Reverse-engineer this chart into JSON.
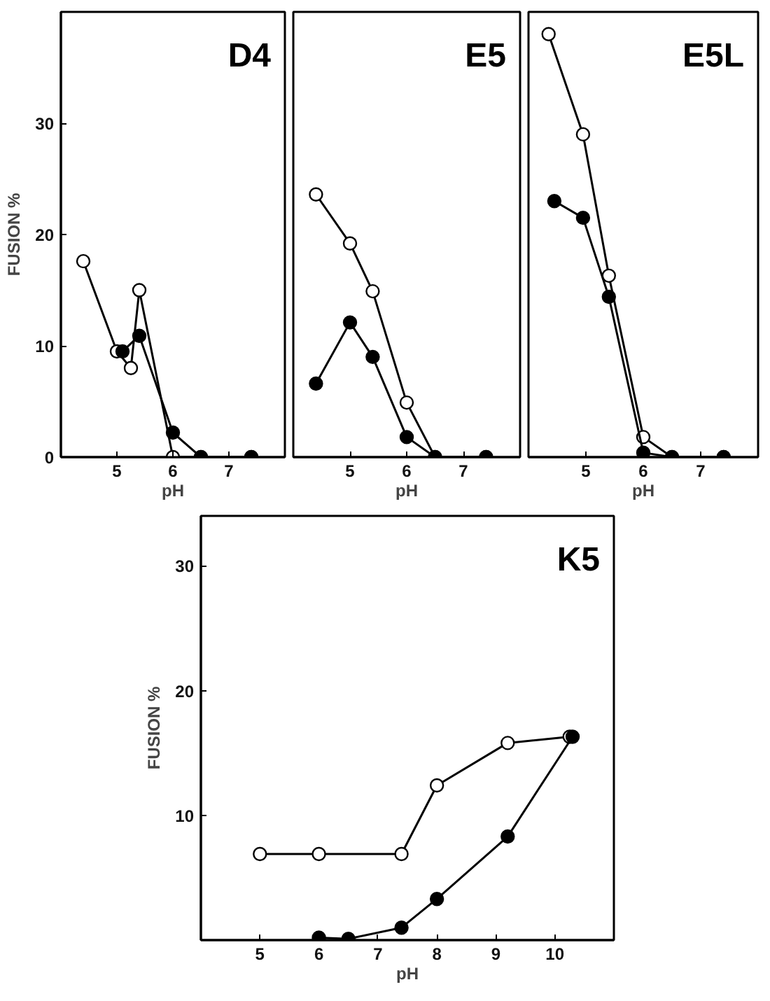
{
  "chart_data": [
    {
      "type": "line",
      "title": "D4",
      "xlabel": "pH",
      "ylabel": "FUSION %",
      "xlim": [
        4,
        8
      ],
      "ylim": [
        0,
        40
      ],
      "xticks": [
        5,
        6,
        7
      ],
      "yticks": [
        0,
        10,
        20,
        30
      ],
      "grid": false,
      "marker": "circle",
      "series": [
        {
          "color": "#ffffff",
          "x": [
            4.4,
            5.0,
            5.25,
            5.4,
            6.0,
            6.5,
            7.4
          ],
          "values": [
            17.6,
            9.5,
            8,
            15,
            0,
            0,
            0
          ]
        },
        {
          "color": "#000000",
          "x": [
            5.1,
            5.4,
            6.0,
            6.5,
            7.4
          ],
          "values": [
            9.5,
            10.9,
            2.2,
            0,
            0
          ]
        }
      ]
    },
    {
      "type": "line",
      "title": "E5",
      "xlabel": "pH",
      "xlim": [
        4,
        8
      ],
      "ylim": [
        0,
        40
      ],
      "xticks": [
        5,
        6,
        7
      ],
      "yticks": [
        0,
        10,
        20,
        30
      ],
      "tick_labels": "x",
      "grid": false,
      "marker": "circle",
      "series": [
        {
          "color": "#ffffff",
          "x": [
            4.4,
            5.0,
            5.4,
            6.0,
            6.5,
            7.4
          ],
          "values": [
            23.6,
            19.2,
            14.9,
            4.9,
            0,
            0
          ]
        },
        {
          "color": "#000000",
          "x": [
            4.4,
            5.0,
            5.4,
            6.0,
            6.5,
            7.4
          ],
          "values": [
            6.6,
            12.1,
            9.0,
            1.8,
            0,
            0
          ]
        }
      ]
    },
    {
      "type": "line",
      "title": "E5L",
      "xlabel": "pH",
      "xlim": [
        4,
        8
      ],
      "ylim": [
        0,
        40
      ],
      "xticks": [
        5,
        6,
        7
      ],
      "yticks": [
        0,
        10,
        20,
        30
      ],
      "tick_labels": "x",
      "grid": false,
      "marker": "circle",
      "series": [
        {
          "color": "#ffffff",
          "x": [
            4.35,
            4.95,
            5.4,
            6.0,
            6.5,
            7.4
          ],
          "values": [
            38.0,
            29.0,
            16.3,
            1.8,
            0,
            0
          ]
        },
        {
          "color": "#000000",
          "x": [
            4.45,
            4.95,
            5.4,
            6.0,
            6.5,
            7.4
          ],
          "values": [
            23.0,
            21.5,
            14.4,
            0.4,
            0,
            0
          ]
        }
      ]
    },
    {
      "type": "line",
      "title": "K5",
      "xlabel": "pH",
      "ylabel": "FUSION %",
      "xlim": [
        4,
        11
      ],
      "ylim": [
        0,
        34
      ],
      "xticks": [
        5,
        6,
        7,
        8,
        9,
        10
      ],
      "yticks": [
        10,
        20,
        30
      ],
      "grid": false,
      "marker": "circle",
      "series": [
        {
          "color": "#ffffff",
          "x": [
            5.0,
            6.0,
            7.4,
            8.0,
            9.2,
            10.25
          ],
          "values": [
            6.9,
            6.9,
            6.9,
            12.4,
            15.8,
            16.3
          ]
        },
        {
          "color": "#000000",
          "x": [
            6.0,
            6.5,
            7.4,
            8.0,
            9.2,
            10.3
          ],
          "values": [
            0.2,
            0.1,
            1.0,
            3.3,
            8.3,
            16.3
          ]
        }
      ]
    }
  ]
}
